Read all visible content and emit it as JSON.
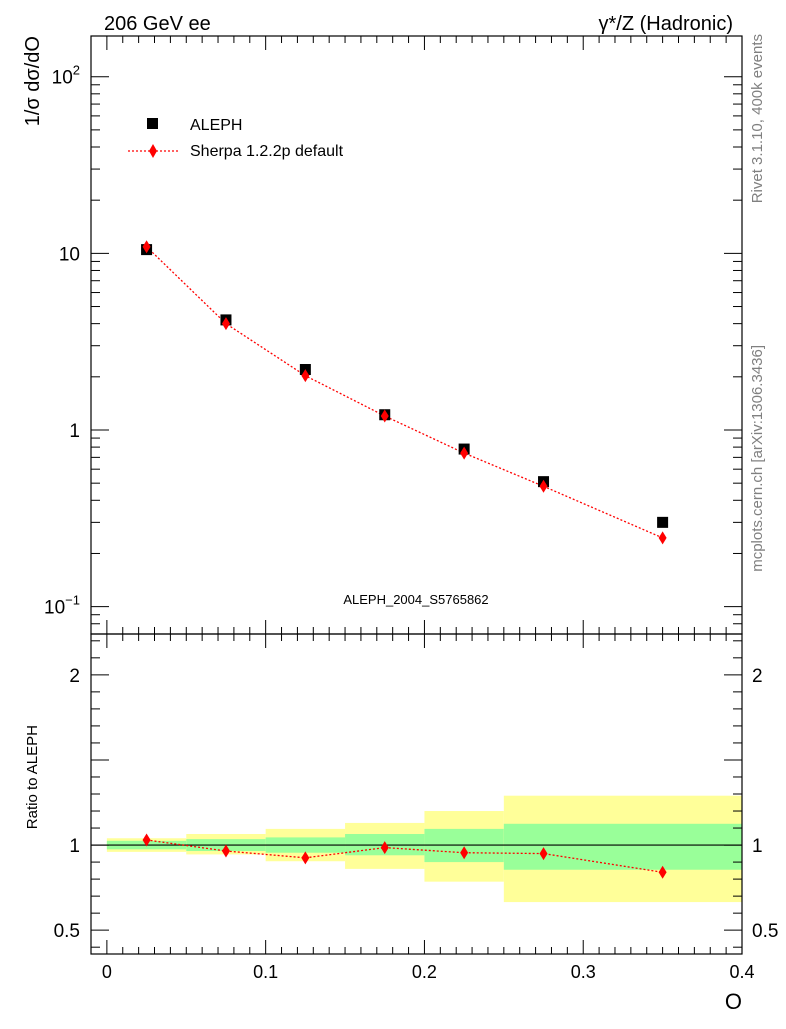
{
  "header": {
    "left_title": "206 GeV ee",
    "right_title": "γ*/Z (Hadronic)"
  },
  "side_text": {
    "rivet": "Rivet 3.1.10,  400k events",
    "mcplots": "mcplots.cern.ch [arXiv:1306.3436]"
  },
  "colors": {
    "data": "#000000",
    "mc": "#ff0000",
    "band_inner": "#99ff99",
    "band_outer": "#ffff99",
    "watermark": "#808080"
  },
  "chart_data": [
    {
      "type": "scatter",
      "title": "206 GeV ee",
      "ylabel": "1/σ  dσ/dO",
      "xlabel": "O",
      "yscale": "log",
      "xlim": [
        -0.01,
        0.4
      ],
      "ylim": [
        0.07,
        170
      ],
      "y_ticks": [
        {
          "value": 0.1,
          "base": "10",
          "exp": "−1"
        },
        {
          "value": 1,
          "label": "1"
        },
        {
          "value": 10,
          "label": "10"
        },
        {
          "value": 100,
          "base": "10",
          "exp": "2"
        }
      ],
      "watermark": "ALEPH_2004_S5765862",
      "legend": {
        "position": "top-left",
        "entries": [
          "ALEPH",
          "Sherpa 1.2.2p default"
        ]
      },
      "series": [
        {
          "name": "ALEPH",
          "marker": "square",
          "x": [
            0.025,
            0.075,
            0.125,
            0.175,
            0.225,
            0.275,
            0.35
          ],
          "y": [
            10.5,
            4.2,
            2.2,
            1.22,
            0.78,
            0.51,
            0.3
          ]
        },
        {
          "name": "Sherpa 1.2.2p default",
          "marker": "diamond",
          "line": "dotted",
          "x": [
            0.025,
            0.075,
            0.125,
            0.175,
            0.225,
            0.275,
            0.35
          ],
          "y": [
            10.9,
            4.0,
            2.03,
            1.2,
            0.74,
            0.48,
            0.245
          ]
        }
      ]
    },
    {
      "type": "scatter",
      "ylabel": "Ratio to ALEPH",
      "xlabel": "O",
      "xlim": [
        -0.01,
        0.4
      ],
      "ylim": [
        0.36,
        2.24
      ],
      "x_ticks": [
        "0",
        "0.1",
        "0.2",
        "0.3",
        "0.4"
      ],
      "x_tick_values": [
        0,
        0.1,
        0.2,
        0.3,
        0.4
      ],
      "y_ticks": [
        {
          "value": 0.5,
          "label": "0.5"
        },
        {
          "value": 1,
          "label": "1"
        },
        {
          "value": 2,
          "label": "2"
        }
      ],
      "bands": [
        {
          "x0": 0.0,
          "x1": 0.05,
          "inner": [
            0.975,
            1.025
          ],
          "outer": [
            0.96,
            1.04
          ]
        },
        {
          "x0": 0.05,
          "x1": 0.1,
          "inner": [
            0.965,
            1.035
          ],
          "outer": [
            0.945,
            1.065
          ]
        },
        {
          "x0": 0.1,
          "x1": 0.15,
          "inner": [
            0.955,
            1.045
          ],
          "outer": [
            0.905,
            1.095
          ]
        },
        {
          "x0": 0.15,
          "x1": 0.2,
          "inner": [
            0.94,
            1.065
          ],
          "outer": [
            0.86,
            1.13
          ]
        },
        {
          "x0": 0.2,
          "x1": 0.25,
          "inner": [
            0.9,
            1.095
          ],
          "outer": [
            0.785,
            1.2
          ]
        },
        {
          "x0": 0.25,
          "x1": 0.4,
          "inner": [
            0.855,
            1.125
          ],
          "outer": [
            0.665,
            1.29
          ]
        }
      ],
      "series": [
        {
          "name": "Sherpa 1.2.2p default",
          "marker": "diamond",
          "line": "dotted",
          "x": [
            0.025,
            0.075,
            0.125,
            0.175,
            0.225,
            0.275,
            0.35
          ],
          "y": [
            1.03,
            0.965,
            0.925,
            0.985,
            0.955,
            0.95,
            0.84
          ]
        }
      ]
    }
  ]
}
